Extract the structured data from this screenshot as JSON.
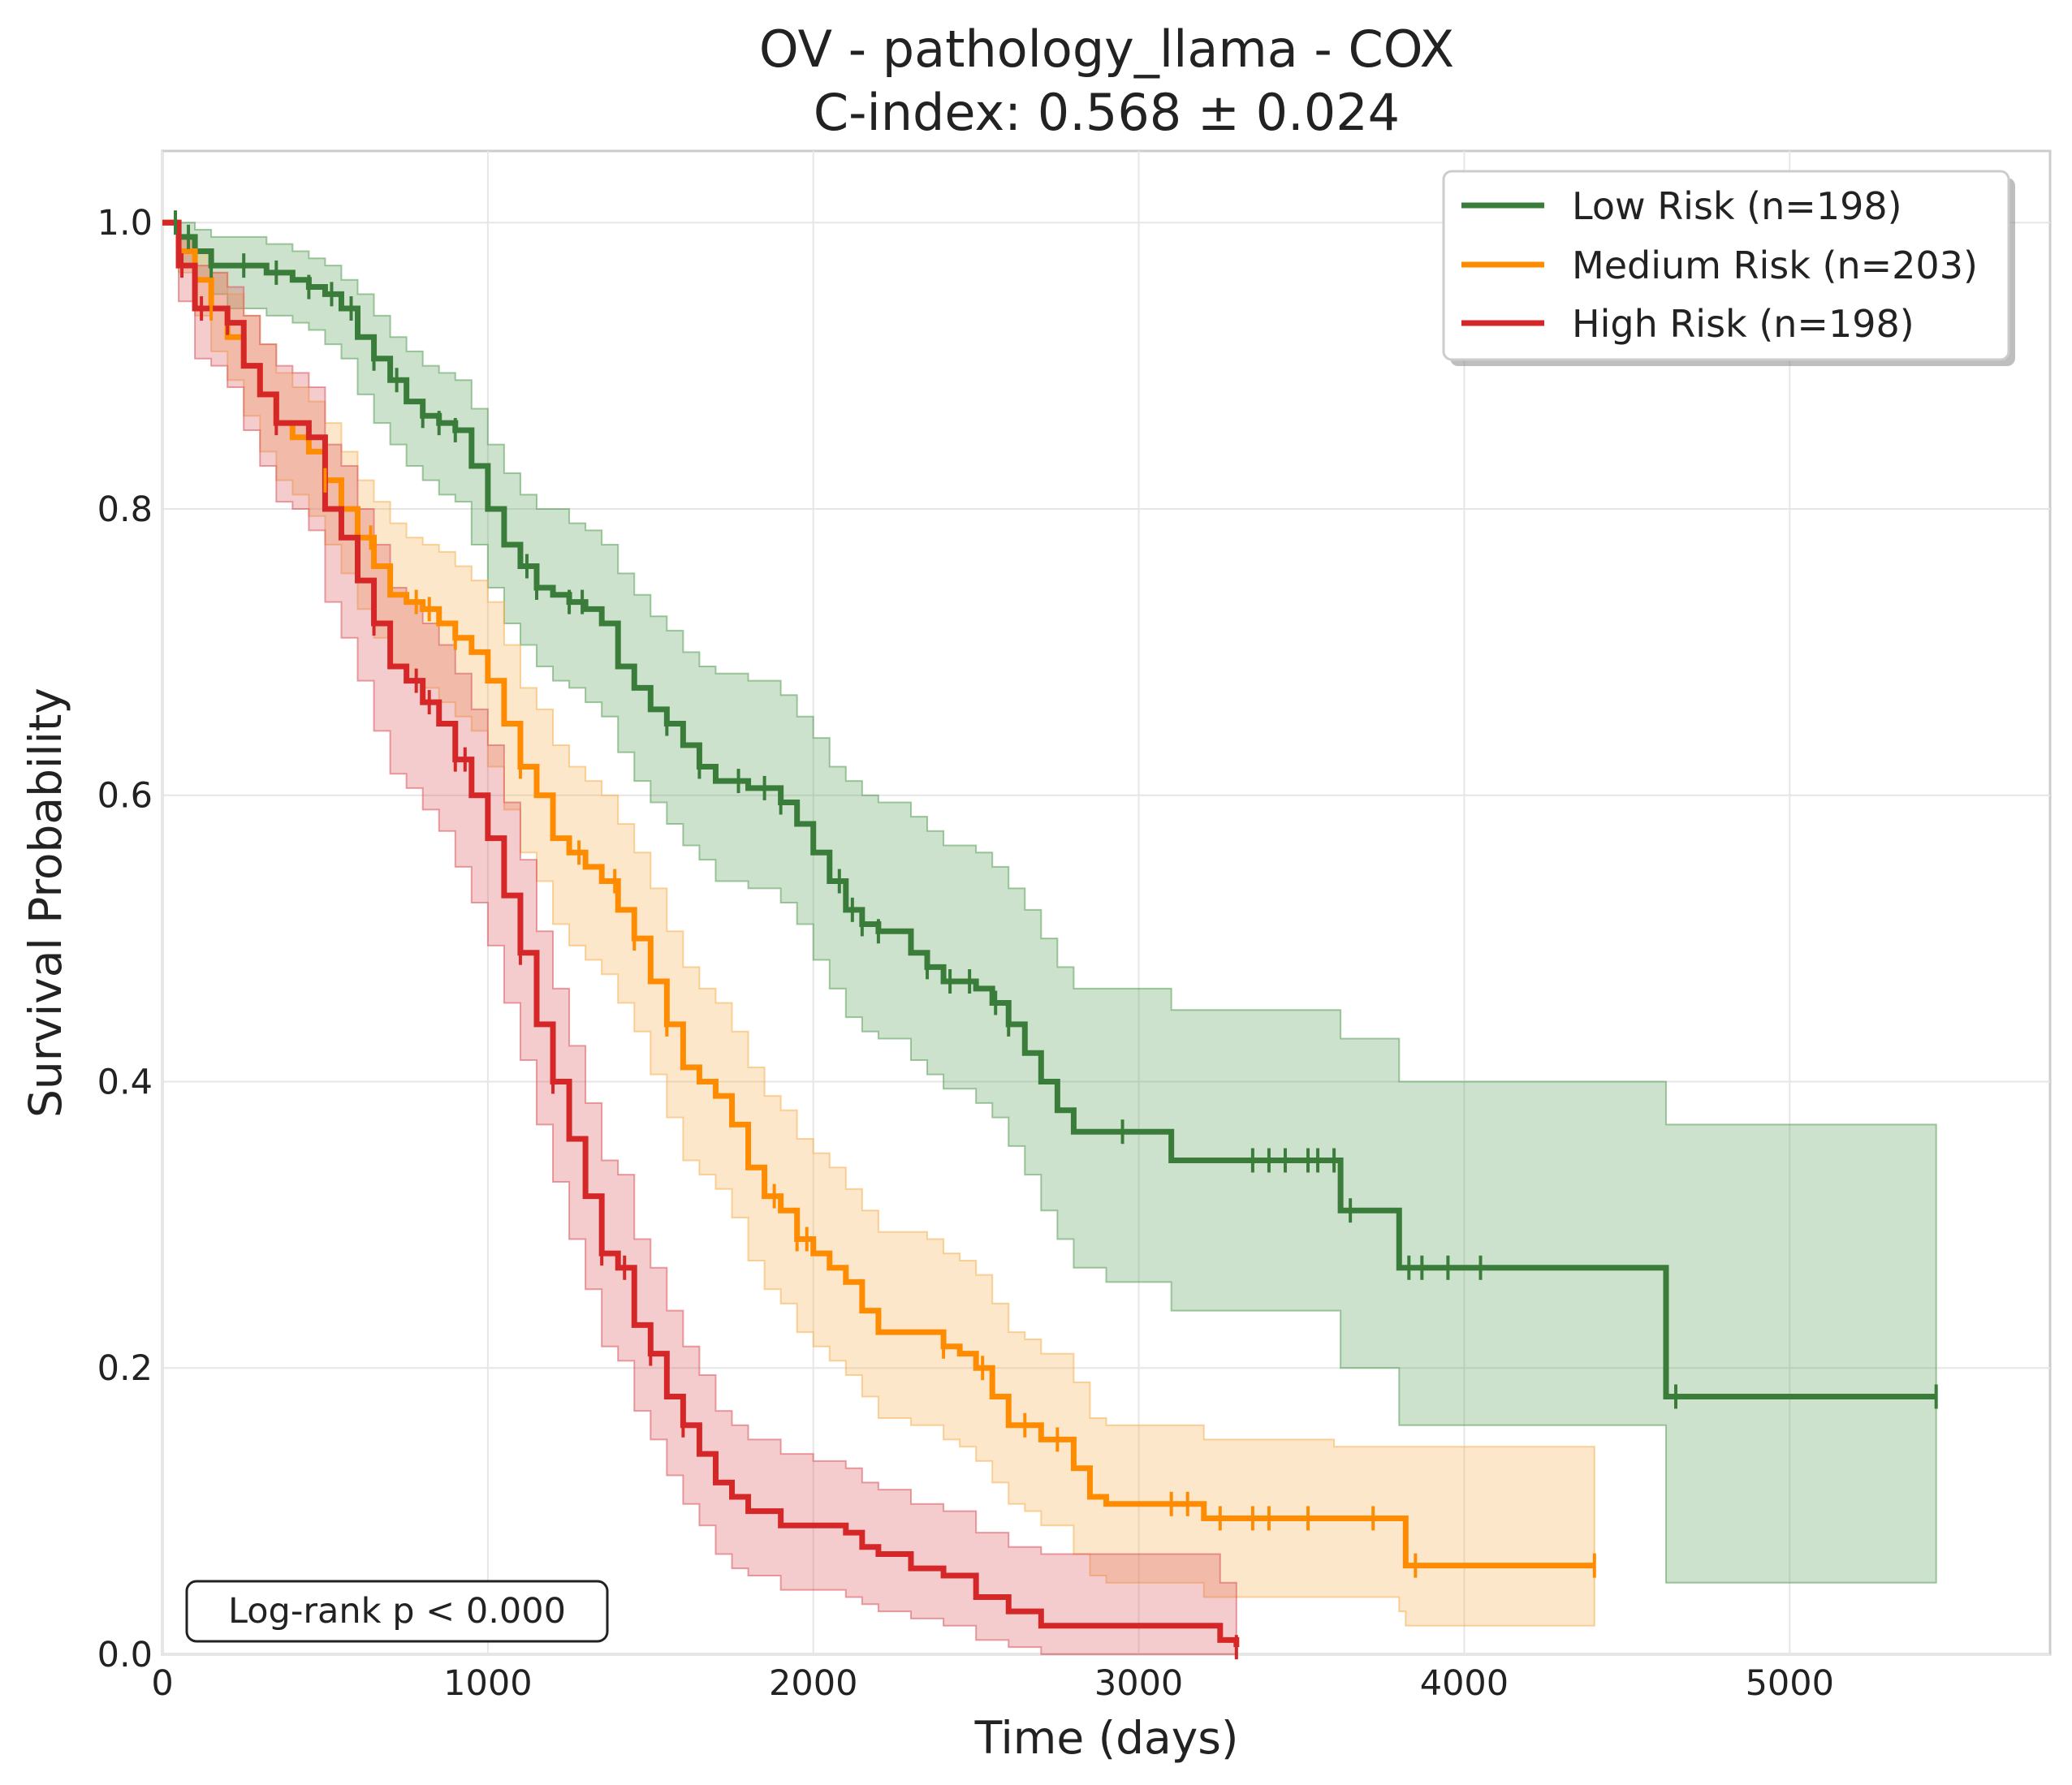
{
  "chart_data": {
    "type": "line",
    "subtype": "kaplan-meier",
    "title": "OV - pathology_llama - COX",
    "subtitle": "C-index: 0.568 ± 0.024",
    "xlabel": "Time (days)",
    "ylabel": "Survival Probability",
    "xlim": [
      0,
      5800
    ],
    "ylim": [
      0,
      1.05
    ],
    "xticks": [
      0,
      1000,
      2000,
      3000,
      4000,
      5000
    ],
    "xtick_labels": [
      "0",
      "1000",
      "2000",
      "3000",
      "4000",
      "5000"
    ],
    "yticks": [
      0,
      0.2,
      0.4,
      0.6,
      0.8,
      1.0
    ],
    "ytick_labels": [
      "0.0",
      "0.2",
      "0.4",
      "0.6",
      "0.8",
      "1.0"
    ],
    "grid": true,
    "legend_position": "top-right",
    "annotation": "Log-rank p < 0.000",
    "series": [
      {
        "name": "Low Risk (n=198)",
        "color": "#3a7d3a",
        "band_color": "#5a9e5a",
        "x": [
          0,
          50,
          100,
          150,
          200,
          320,
          400,
          450,
          500,
          550,
          600,
          650,
          700,
          750,
          800,
          850,
          900,
          950,
          1000,
          1050,
          1100,
          1150,
          1200,
          1250,
          1300,
          1350,
          1400,
          1450,
          1500,
          1550,
          1600,
          1650,
          1700,
          1800,
          1900,
          1950,
          2000,
          2050,
          2100,
          2150,
          2200,
          2250,
          2300,
          2350,
          2400,
          2450,
          2500,
          2550,
          2600,
          2650,
          2700,
          2750,
          2800,
          2900,
          3100,
          3300,
          3600,
          3620,
          3780,
          3800,
          4000,
          4600,
          4620,
          5450
        ],
        "y": [
          1.0,
          0.99,
          0.98,
          0.97,
          0.97,
          0.965,
          0.96,
          0.955,
          0.95,
          0.94,
          0.92,
          0.905,
          0.89,
          0.875,
          0.865,
          0.86,
          0.855,
          0.83,
          0.8,
          0.775,
          0.76,
          0.745,
          0.74,
          0.735,
          0.73,
          0.72,
          0.69,
          0.675,
          0.66,
          0.65,
          0.635,
          0.62,
          0.61,
          0.605,
          0.595,
          0.58,
          0.56,
          0.54,
          0.52,
          0.51,
          0.505,
          0.505,
          0.49,
          0.48,
          0.47,
          0.47,
          0.465,
          0.455,
          0.44,
          0.42,
          0.4,
          0.38,
          0.365,
          0.365,
          0.345,
          0.345,
          0.345,
          0.31,
          0.31,
          0.27,
          0.27,
          0.27,
          0.18,
          0.18
        ],
        "ci_upper": [
          1.0,
          1.0,
          0.995,
          0.99,
          0.99,
          0.985,
          0.98,
          0.975,
          0.97,
          0.96,
          0.95,
          0.935,
          0.92,
          0.91,
          0.9,
          0.895,
          0.89,
          0.87,
          0.845,
          0.825,
          0.81,
          0.8,
          0.8,
          0.79,
          0.785,
          0.775,
          0.755,
          0.74,
          0.725,
          0.715,
          0.7,
          0.69,
          0.685,
          0.68,
          0.67,
          0.655,
          0.64,
          0.62,
          0.61,
          0.6,
          0.595,
          0.595,
          0.585,
          0.575,
          0.565,
          0.565,
          0.56,
          0.55,
          0.535,
          0.52,
          0.5,
          0.48,
          0.465,
          0.465,
          0.45,
          0.45,
          0.45,
          0.43,
          0.43,
          0.4,
          0.4,
          0.4,
          0.37,
          0.37
        ],
        "ci_lower": [
          1.0,
          0.97,
          0.96,
          0.95,
          0.94,
          0.935,
          0.93,
          0.925,
          0.915,
          0.905,
          0.88,
          0.86,
          0.845,
          0.83,
          0.82,
          0.81,
          0.805,
          0.775,
          0.745,
          0.72,
          0.705,
          0.69,
          0.68,
          0.675,
          0.665,
          0.655,
          0.63,
          0.61,
          0.595,
          0.58,
          0.565,
          0.555,
          0.54,
          0.535,
          0.525,
          0.51,
          0.485,
          0.465,
          0.445,
          0.435,
          0.43,
          0.43,
          0.415,
          0.405,
          0.395,
          0.395,
          0.385,
          0.375,
          0.355,
          0.335,
          0.31,
          0.29,
          0.27,
          0.26,
          0.24,
          0.24,
          0.24,
          0.2,
          0.2,
          0.16,
          0.16,
          0.16,
          0.05,
          0.05
        ],
        "censored": [
          40,
          80,
          150,
          250,
          350,
          450,
          520,
          580,
          650,
          720,
          800,
          850,
          900,
          1120,
          1150,
          1250,
          1290,
          1550,
          1650,
          1770,
          1850,
          1900,
          2080,
          2120,
          2150,
          2200,
          2350,
          2420,
          2480,
          2560,
          2600,
          2950,
          3350,
          3400,
          3450,
          3520,
          3550,
          3600,
          3650,
          3830,
          3870,
          3950,
          4050,
          4650,
          5450
        ]
      },
      {
        "name": "Medium Risk (n=203)",
        "color": "#ff8c00",
        "band_color": "#f5b054",
        "x": [
          0,
          50,
          100,
          150,
          200,
          250,
          300,
          350,
          400,
          450,
          500,
          550,
          600,
          650,
          700,
          750,
          800,
          850,
          900,
          950,
          1000,
          1050,
          1100,
          1150,
          1200,
          1250,
          1300,
          1350,
          1400,
          1450,
          1500,
          1550,
          1600,
          1650,
          1700,
          1750,
          1800,
          1850,
          1900,
          1950,
          2000,
          2050,
          2100,
          2150,
          2200,
          2300,
          2350,
          2400,
          2450,
          2500,
          2550,
          2600,
          2650,
          2700,
          2750,
          2800,
          2850,
          2900,
          3000,
          3100,
          3200,
          3400,
          3600,
          3800,
          3820,
          4400
        ],
        "y": [
          1.0,
          0.98,
          0.96,
          0.94,
          0.92,
          0.9,
          0.88,
          0.86,
          0.85,
          0.84,
          0.82,
          0.8,
          0.78,
          0.76,
          0.74,
          0.735,
          0.73,
          0.72,
          0.71,
          0.7,
          0.68,
          0.65,
          0.62,
          0.6,
          0.57,
          0.56,
          0.55,
          0.54,
          0.52,
          0.5,
          0.47,
          0.44,
          0.41,
          0.4,
          0.39,
          0.37,
          0.34,
          0.32,
          0.31,
          0.29,
          0.28,
          0.27,
          0.26,
          0.24,
          0.225,
          0.225,
          0.225,
          0.215,
          0.21,
          0.2,
          0.18,
          0.16,
          0.16,
          0.15,
          0.15,
          0.13,
          0.11,
          0.105,
          0.105,
          0.105,
          0.095,
          0.095,
          0.095,
          0.095,
          0.062,
          0.062
        ],
        "ci_upper": [
          1.0,
          0.99,
          0.98,
          0.965,
          0.95,
          0.935,
          0.915,
          0.895,
          0.885,
          0.875,
          0.86,
          0.84,
          0.82,
          0.805,
          0.79,
          0.78,
          0.775,
          0.77,
          0.76,
          0.75,
          0.735,
          0.705,
          0.675,
          0.66,
          0.635,
          0.62,
          0.61,
          0.6,
          0.58,
          0.56,
          0.535,
          0.505,
          0.48,
          0.465,
          0.455,
          0.435,
          0.41,
          0.39,
          0.38,
          0.36,
          0.35,
          0.34,
          0.325,
          0.31,
          0.295,
          0.295,
          0.29,
          0.28,
          0.275,
          0.265,
          0.245,
          0.225,
          0.22,
          0.21,
          0.21,
          0.19,
          0.165,
          0.16,
          0.16,
          0.16,
          0.15,
          0.15,
          0.145,
          0.145,
          0.145,
          0.145
        ],
        "ci_lower": [
          1.0,
          0.965,
          0.935,
          0.91,
          0.89,
          0.865,
          0.84,
          0.82,
          0.81,
          0.795,
          0.775,
          0.755,
          0.73,
          0.71,
          0.69,
          0.68,
          0.675,
          0.665,
          0.655,
          0.645,
          0.62,
          0.59,
          0.56,
          0.54,
          0.51,
          0.495,
          0.485,
          0.475,
          0.455,
          0.435,
          0.405,
          0.375,
          0.345,
          0.335,
          0.325,
          0.305,
          0.275,
          0.255,
          0.245,
          0.225,
          0.215,
          0.205,
          0.195,
          0.18,
          0.165,
          0.16,
          0.16,
          0.15,
          0.145,
          0.135,
          0.12,
          0.105,
          0.1,
          0.09,
          0.09,
          0.07,
          0.055,
          0.05,
          0.05,
          0.05,
          0.04,
          0.04,
          0.04,
          0.03,
          0.02,
          0.02
        ],
        "censored": [
          150,
          500,
          640,
          780,
          820,
          900,
          1100,
          1280,
          1390,
          1450,
          1550,
          1880,
          1950,
          1980,
          2400,
          2520,
          2650,
          2750,
          3100,
          3150,
          3250,
          3350,
          3400,
          3520,
          3720,
          3850,
          4400
        ]
      },
      {
        "name": "High Risk (n=198)",
        "color": "#d62728",
        "band_color": "#d9555d",
        "x": [
          0,
          50,
          100,
          150,
          200,
          250,
          300,
          350,
          400,
          450,
          500,
          550,
          600,
          650,
          700,
          750,
          800,
          850,
          900,
          950,
          1000,
          1050,
          1100,
          1150,
          1200,
          1250,
          1300,
          1350,
          1400,
          1450,
          1500,
          1550,
          1600,
          1650,
          1700,
          1750,
          1800,
          1900,
          2000,
          2100,
          2150,
          2200,
          2300,
          2400,
          2500,
          2600,
          2700,
          3200,
          3250,
          3300
        ],
        "y": [
          1.0,
          0.97,
          0.94,
          0.94,
          0.93,
          0.9,
          0.88,
          0.86,
          0.86,
          0.85,
          0.8,
          0.78,
          0.75,
          0.72,
          0.69,
          0.68,
          0.665,
          0.65,
          0.625,
          0.6,
          0.57,
          0.53,
          0.49,
          0.44,
          0.4,
          0.36,
          0.32,
          0.28,
          0.27,
          0.23,
          0.21,
          0.18,
          0.16,
          0.14,
          0.12,
          0.11,
          0.1,
          0.09,
          0.09,
          0.085,
          0.075,
          0.07,
          0.06,
          0.055,
          0.04,
          0.03,
          0.02,
          0.02,
          0.01,
          0.005
        ],
        "ci_upper": [
          1.0,
          0.99,
          0.97,
          0.965,
          0.955,
          0.935,
          0.915,
          0.9,
          0.895,
          0.885,
          0.845,
          0.83,
          0.8,
          0.775,
          0.745,
          0.735,
          0.72,
          0.705,
          0.685,
          0.66,
          0.635,
          0.595,
          0.555,
          0.505,
          0.465,
          0.425,
          0.385,
          0.345,
          0.335,
          0.29,
          0.27,
          0.24,
          0.215,
          0.195,
          0.17,
          0.16,
          0.15,
          0.14,
          0.135,
          0.13,
          0.12,
          0.115,
          0.105,
          0.1,
          0.085,
          0.075,
          0.07,
          0.07,
          0.05,
          0.05
        ],
        "ci_lower": [
          1.0,
          0.945,
          0.905,
          0.9,
          0.885,
          0.855,
          0.83,
          0.805,
          0.8,
          0.785,
          0.735,
          0.71,
          0.68,
          0.645,
          0.615,
          0.605,
          0.59,
          0.575,
          0.55,
          0.525,
          0.495,
          0.455,
          0.415,
          0.37,
          0.33,
          0.29,
          0.255,
          0.215,
          0.205,
          0.17,
          0.15,
          0.125,
          0.105,
          0.09,
          0.07,
          0.06,
          0.055,
          0.045,
          0.045,
          0.04,
          0.035,
          0.03,
          0.025,
          0.02,
          0.01,
          0.005,
          0.0,
          0.0,
          0.0,
          0.0
        ],
        "censored": [
          60,
          120,
          200,
          350,
          650,
          780,
          820,
          900,
          930,
          1100,
          1200,
          1350,
          1420,
          1500,
          1600,
          3300
        ]
      }
    ]
  }
}
